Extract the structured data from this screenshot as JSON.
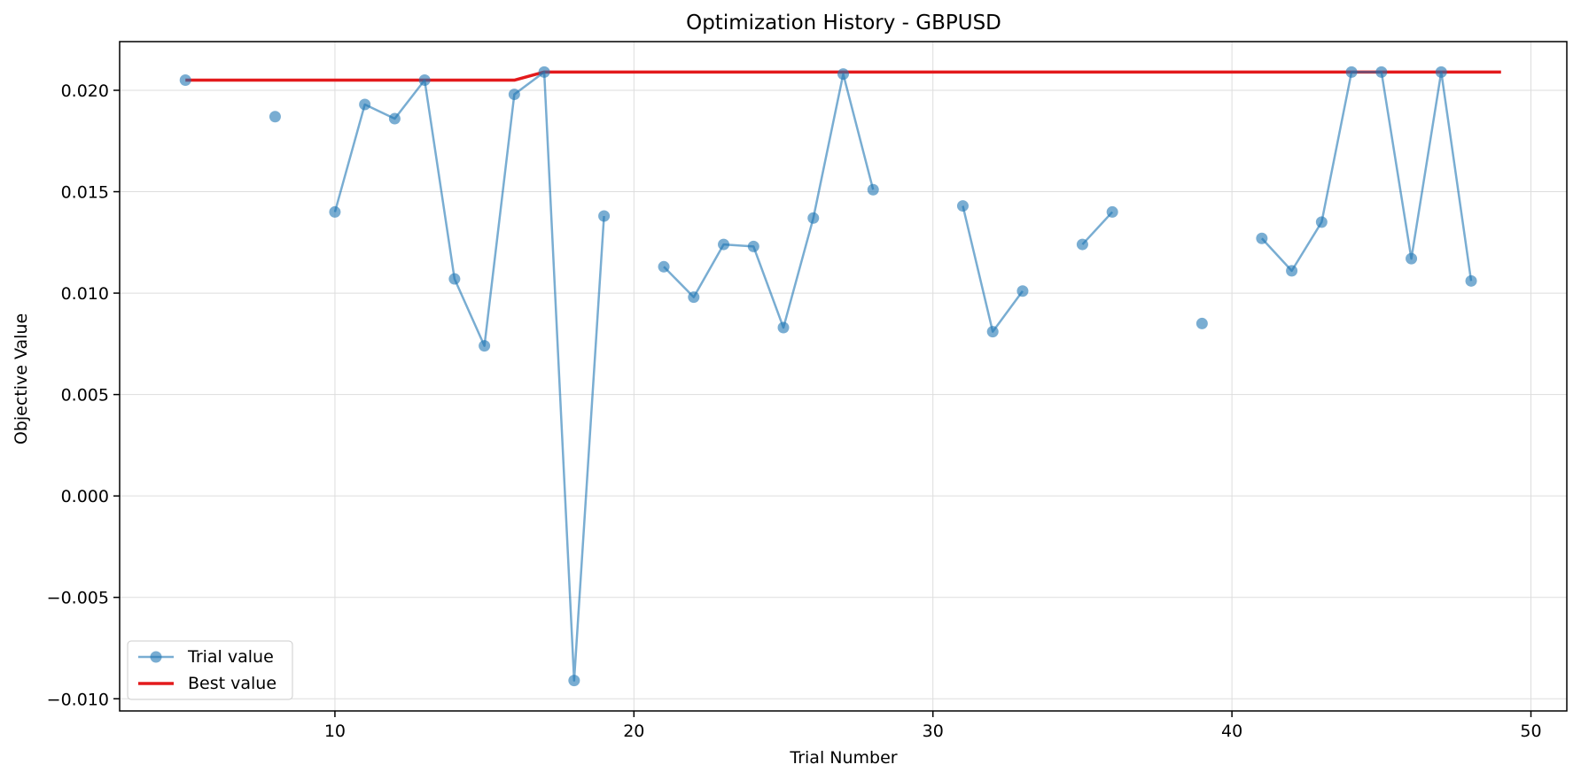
{
  "chart_data": {
    "type": "line",
    "title": "Optimization History - GBPUSD",
    "xlabel": "Trial Number",
    "ylabel": "Objective Value",
    "xlim": [
      2.8,
      51.2
    ],
    "ylim": [
      -0.0106,
      0.0224
    ],
    "xticks": [
      10,
      20,
      30,
      40,
      50
    ],
    "xtick_labels": [
      "10",
      "20",
      "30",
      "40",
      "50"
    ],
    "yticks": [
      -0.01,
      -0.005,
      0.0,
      0.005,
      0.01,
      0.015,
      0.02
    ],
    "ytick_labels": [
      "−0.010",
      "−0.005",
      "0.000",
      "0.005",
      "0.010",
      "0.015",
      "0.020"
    ],
    "grid": true,
    "legend": "lower-left",
    "series": [
      {
        "name": "Trial value",
        "color": "#1f77b4",
        "style": "line-markers",
        "x": [
          5,
          6,
          7,
          8,
          9,
          10,
          11,
          12,
          13,
          14,
          15,
          16,
          17,
          18,
          19,
          20,
          21,
          22,
          23,
          24,
          25,
          26,
          27,
          28,
          29,
          30,
          31,
          32,
          33,
          34,
          35,
          36,
          37,
          38,
          39,
          40,
          41,
          42,
          43,
          44,
          45,
          46,
          47,
          48
        ],
        "y": [
          0.0205,
          null,
          null,
          0.0187,
          null,
          0.014,
          0.0193,
          0.0186,
          0.0205,
          0.0107,
          0.0074,
          0.0198,
          0.0209,
          -0.0091,
          0.0138,
          null,
          0.0113,
          0.0098,
          0.0124,
          0.0123,
          0.0083,
          0.0137,
          0.0208,
          0.0151,
          null,
          null,
          0.0143,
          0.0081,
          0.0101,
          null,
          0.0124,
          0.014,
          null,
          null,
          0.0085,
          null,
          0.0127,
          0.0111,
          0.0135,
          0.0209,
          0.0209,
          0.0117,
          0.0209,
          0.0106
        ]
      },
      {
        "name": "Best value",
        "color": "#e31a1c",
        "style": "line",
        "x": [
          5,
          16,
          17,
          49
        ],
        "y": [
          0.0205,
          0.0205,
          0.0209,
          0.0209
        ]
      }
    ]
  }
}
